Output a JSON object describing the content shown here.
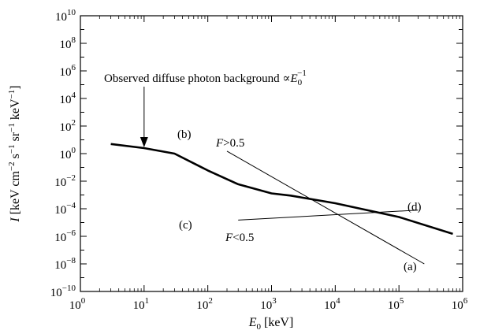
{
  "chart_data": {
    "type": "line",
    "x_scale": "log",
    "y_scale": "log",
    "xlim": [
      1,
      1000000
    ],
    "ylim": [
      1e-10,
      10000000000.0
    ],
    "xlabel": {
      "base": "E",
      "sub": "0",
      "rest": " [keV]"
    },
    "ylabel": {
      "italic": "I",
      "text": " [keV cm",
      "m2": "−2",
      "s": " s",
      "m1a": "−1",
      "sr": " sr",
      "m1b": "−1",
      "kev": " keV",
      "m1c": "−1",
      "close": "]"
    },
    "x_ticks": [
      {
        "base": "10",
        "exp": "0"
      },
      {
        "base": "10",
        "exp": "1"
      },
      {
        "base": "10",
        "exp": "2"
      },
      {
        "base": "10",
        "exp": "3"
      },
      {
        "base": "10",
        "exp": "4"
      },
      {
        "base": "10",
        "exp": "5"
      },
      {
        "base": "10",
        "exp": "6"
      }
    ],
    "y_ticks": [
      {
        "base": "10",
        "exp": "10"
      },
      {
        "base": "10",
        "exp": "8"
      },
      {
        "base": "10",
        "exp": "6"
      },
      {
        "base": "10",
        "exp": "4"
      },
      {
        "base": "10",
        "exp": "2"
      },
      {
        "base": "10",
        "exp": "0"
      },
      {
        "base": "10",
        "exp": "-2"
      },
      {
        "base": "10",
        "exp": "-4"
      },
      {
        "base": "10",
        "exp": "-6"
      },
      {
        "base": "10",
        "exp": "-8"
      },
      {
        "base": "10",
        "exp": "-10"
      }
    ],
    "series": [
      {
        "id": "observed",
        "style": "thick",
        "x": [
          3,
          10,
          30,
          100,
          300,
          1000,
          2000,
          10000,
          100000,
          700000
        ],
        "y": [
          5,
          2.5,
          1.0,
          0.06,
          0.006,
          0.0013,
          0.0009,
          0.00025,
          2.5e-05,
          1.5e-06
        ]
      },
      {
        "id": "a_b",
        "style": "thin",
        "x": [
          200,
          250000
        ],
        "y": [
          1.5,
          1e-08
        ]
      },
      {
        "id": "c_d",
        "style": "thin",
        "x": [
          300,
          200000
        ],
        "y": [
          1.5e-05,
          8e-05
        ]
      }
    ],
    "annotations": {
      "observed": {
        "text": "Observed diffuse photon background ∝",
        "sym": "E",
        "sub": "0",
        "sup": "−1"
      },
      "b": "(b)",
      "a": "(a)",
      "c": "(c)",
      "d": "(d)",
      "f_gt": {
        "italic": "F",
        "rest": ">0.5"
      },
      "f_lt": {
        "italic": "F",
        "rest": "<0.5"
      }
    },
    "arrow_target": {
      "x": 10,
      "y": 2.5
    }
  }
}
